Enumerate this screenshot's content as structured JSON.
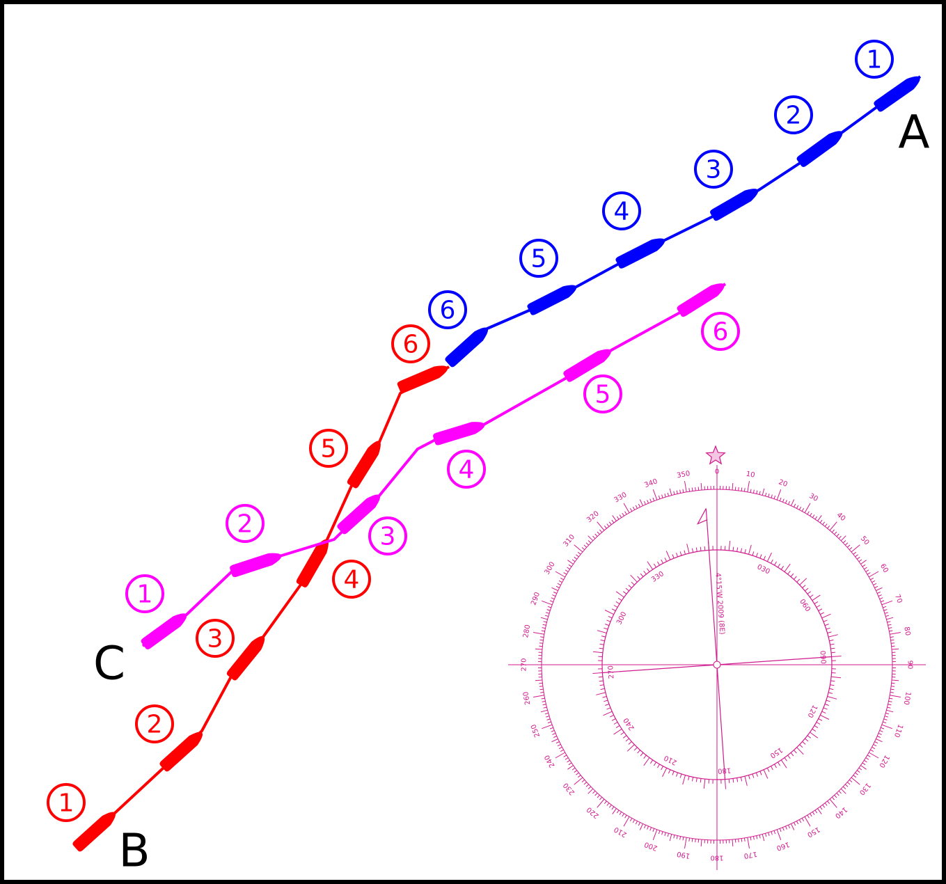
{
  "vessels": [
    {
      "name": "A",
      "color": "#0000ff",
      "positions": [
        "1",
        "2",
        "3",
        "4",
        "5",
        "6"
      ]
    },
    {
      "name": "B",
      "color": "#ff0000",
      "positions": [
        "1",
        "2",
        "3",
        "4",
        "5",
        "6"
      ]
    },
    {
      "name": "C",
      "color": "#ff00ff",
      "positions": [
        "1",
        "2",
        "3",
        "4",
        "5",
        "6"
      ]
    }
  ],
  "compass": {
    "color": "#d0198c",
    "outer_labels": [
      "0",
      "10",
      "20",
      "30",
      "40",
      "50",
      "60",
      "70",
      "80",
      "90",
      "100",
      "110",
      "120",
      "130",
      "140",
      "150",
      "160",
      "170",
      "180",
      "190",
      "200",
      "210",
      "220",
      "230",
      "240",
      "250",
      "260",
      "270",
      "280",
      "290",
      "300",
      "310",
      "320",
      "330",
      "340",
      "350"
    ],
    "inner_labels": [
      "030",
      "060",
      "090",
      "120",
      "150",
      "180",
      "210",
      "240",
      "270",
      "300",
      "330"
    ],
    "variation": "4°15'W 2009 (8E)"
  }
}
